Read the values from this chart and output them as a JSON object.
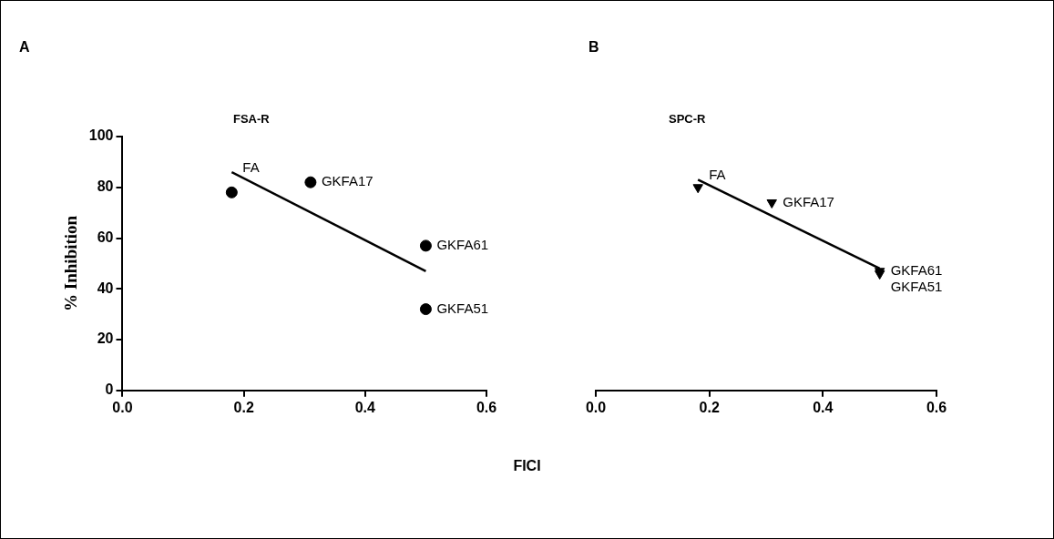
{
  "chart_data": [
    {
      "type": "scatter",
      "title": "A",
      "subtitle": "FSA-R",
      "xlabel": "FICI",
      "ylabel": "% Inhibition",
      "xlim": [
        0,
        0.6
      ],
      "xticks": [
        {
          "value": 0,
          "label": "0.0"
        },
        {
          "value": 0.2,
          "label": "0.2"
        },
        {
          "value": 0.4,
          "label": "0.4"
        },
        {
          "value": 0.6,
          "label": "0.6"
        }
      ],
      "ylim": [
        0,
        100
      ],
      "yticks": [
        0,
        20,
        40,
        60,
        80,
        100
      ],
      "grid": false,
      "legend": false,
      "series": [
        {
          "marker": "circle",
          "color": "#000000",
          "x": [
            0.18,
            0.31,
            0.5,
            0.5
          ],
          "values": [
            78,
            82,
            57,
            32
          ]
        },
        {
          "type": "line",
          "color": "#000000",
          "x": [
            0.18,
            0.5
          ],
          "values": [
            86,
            47
          ]
        }
      ],
      "annotations": [
        {
          "text": "FA",
          "x": 0.18,
          "y": 78
        },
        {
          "text": "GKFA17",
          "x": 0.31,
          "y": 82
        },
        {
          "text": "GKFA61",
          "x": 0.5,
          "y": 57
        },
        {
          "text": "GKFA51",
          "x": 0.5,
          "y": 32
        }
      ]
    },
    {
      "type": "scatter",
      "title": "B",
      "subtitle": "SPC-R",
      "xlim": [
        0,
        0.6
      ],
      "xticks": [
        {
          "value": 0,
          "label": "0.0"
        },
        {
          "value": 0.2,
          "label": "0.2"
        },
        {
          "value": 0.4,
          "label": "0.4"
        },
        {
          "value": 0.6,
          "label": "0.6"
        }
      ],
      "ylim": [
        0,
        100
      ],
      "tick_labels": "x",
      "grid": false,
      "legend": false,
      "series": [
        {
          "marker": "triangle",
          "color": "#000000",
          "x": [
            0.18,
            0.31,
            0.5,
            0.5
          ],
          "values": [
            80,
            74,
            47,
            46
          ]
        },
        {
          "type": "line",
          "color": "#000000",
          "x": [
            0.18,
            0.5
          ],
          "values": [
            83,
            48
          ]
        }
      ],
      "annotations": [
        {
          "text": "FA",
          "x": 0.18,
          "y": 80
        },
        {
          "text": "GKFA17",
          "x": 0.31,
          "y": 74
        },
        {
          "text": "GKFA61",
          "x": 0.5,
          "y": 47
        },
        {
          "text": "GKFA51",
          "x": 0.5,
          "y": 46
        }
      ]
    }
  ]
}
